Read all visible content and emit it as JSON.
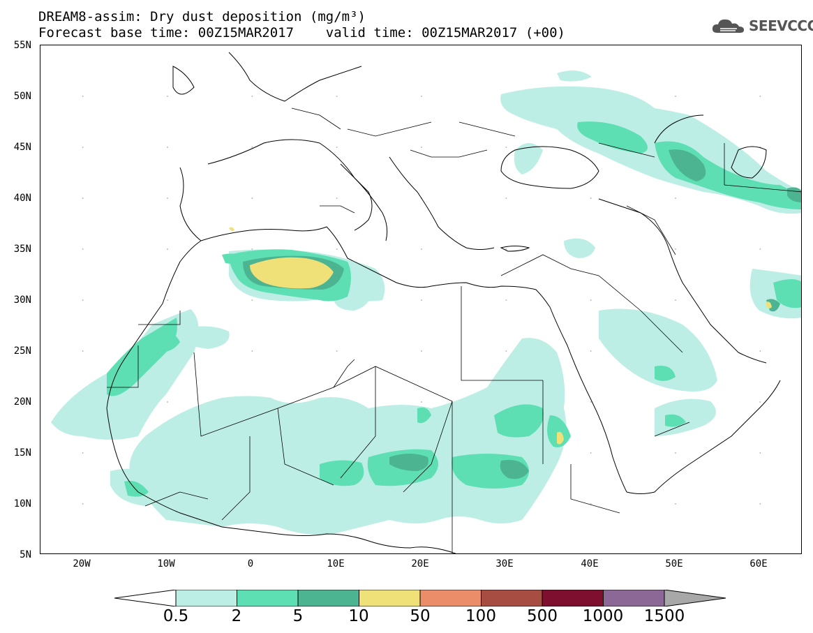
{
  "header": {
    "title_line1": "DREAM8-assim: Dry dust deposition (mg/m³)",
    "title_line2": "Forecast base time: 00Z15MAR2017    valid time: 00Z15MAR2017 (+00)",
    "logo_text": "SEEVCCC"
  },
  "map": {
    "lat_labels": [
      "55N",
      "50N",
      "45N",
      "40N",
      "35N",
      "30N",
      "25N",
      "20N",
      "15N",
      "10N",
      "5N"
    ],
    "lon_labels": [
      "20W",
      "10W",
      "0",
      "10E",
      "20E",
      "30E",
      "40E",
      "50E",
      "60E"
    ],
    "extent": {
      "lon_min": -25,
      "lon_max": 65,
      "lat_min": 5,
      "lat_max": 55
    },
    "colors": {
      "c0_5": "#bdeee6",
      "c2": "#5ddfb3",
      "c5": "#4cb490",
      "c10": "#f0e078",
      "land_line": "#000000",
      "dot_grid": "#bbbbbb"
    }
  },
  "colorbar": {
    "labels": [
      "0.5",
      "2",
      "5",
      "10",
      "50",
      "100",
      "500",
      "1000",
      "1500"
    ],
    "colors": [
      "#ffffff",
      "#bdeee6",
      "#5ddfb3",
      "#4cb490",
      "#f0e078",
      "#ea8d68",
      "#a84d42",
      "#7e0f2e",
      "#8c6896",
      "#a8a8a8"
    ]
  }
}
